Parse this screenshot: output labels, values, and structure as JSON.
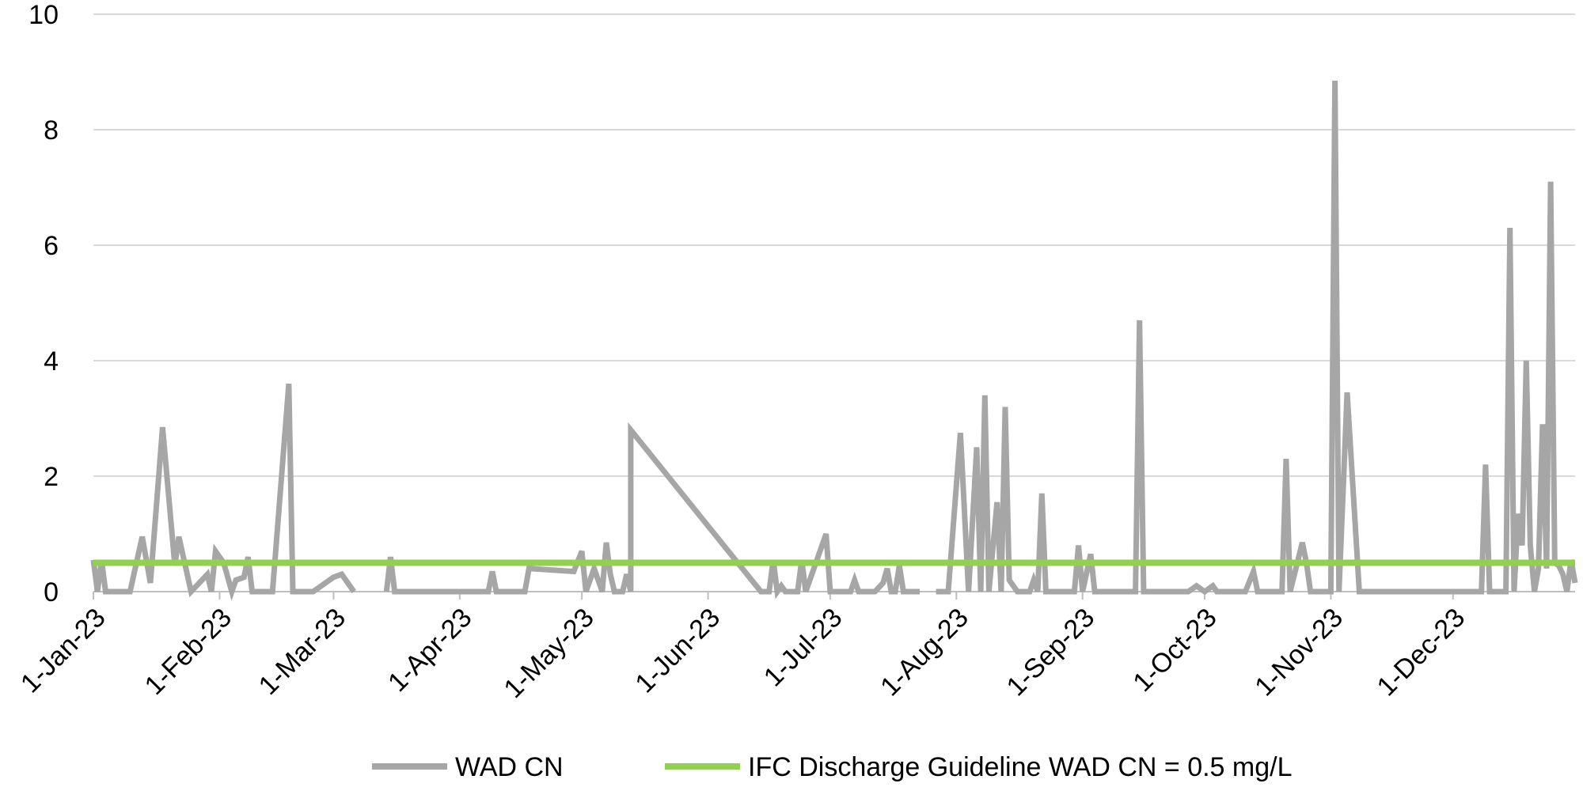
{
  "chart_data": {
    "type": "line",
    "title": "",
    "xlabel": "",
    "ylabel": "",
    "ylim": [
      0,
      10
    ],
    "yticks": [
      "0",
      "2",
      "4",
      "6",
      "8",
      "10"
    ],
    "xlim": [
      "2023-01-01",
      "2023-12-31"
    ],
    "xticks": [
      {
        "date": "2023-01-01",
        "label": "1-Jan-23"
      },
      {
        "date": "2023-02-01",
        "label": "1-Feb-23"
      },
      {
        "date": "2023-03-01",
        "label": "1-Mar-23"
      },
      {
        "date": "2023-04-01",
        "label": "1-Apr-23"
      },
      {
        "date": "2023-05-01",
        "label": "1-May-23"
      },
      {
        "date": "2023-06-01",
        "label": "1-Jun-23"
      },
      {
        "date": "2023-07-01",
        "label": "1-Jul-23"
      },
      {
        "date": "2023-08-01",
        "label": "1-Aug-23"
      },
      {
        "date": "2023-09-01",
        "label": "1-Sep-23"
      },
      {
        "date": "2023-10-01",
        "label": "1-Oct-23"
      },
      {
        "date": "2023-11-01",
        "label": "1-Nov-23"
      },
      {
        "date": "2023-12-01",
        "label": "1-Dec-23"
      }
    ],
    "grid": "horizontal",
    "legend_position": "bottom",
    "series": [
      {
        "name": "WAD CN",
        "color": "#a6a6a6",
        "segments": [
          [
            [
              "2023-01-01",
              0.55
            ],
            [
              "2023-01-02",
              0.0
            ],
            [
              "2023-01-03",
              0.55
            ],
            [
              "2023-01-04",
              0.0
            ],
            [
              "2023-01-10",
              0.0
            ],
            [
              "2023-01-13",
              0.95
            ],
            [
              "2023-01-15",
              0.15
            ],
            [
              "2023-01-18",
              2.85
            ],
            [
              "2023-01-21",
              0.45
            ],
            [
              "2023-01-22",
              0.95
            ],
            [
              "2023-01-25",
              0.0
            ],
            [
              "2023-01-29",
              0.3
            ],
            [
              "2023-01-30",
              0.0
            ],
            [
              "2023-01-31",
              0.7
            ],
            [
              "2023-02-02",
              0.5
            ],
            [
              "2023-02-04",
              0.0
            ],
            [
              "2023-02-05",
              0.2
            ],
            [
              "2023-02-07",
              0.25
            ],
            [
              "2023-02-08",
              0.6
            ],
            [
              "2023-02-09",
              0.0
            ],
            [
              "2023-02-14",
              0.0
            ],
            [
              "2023-02-18",
              3.6
            ],
            [
              "2023-02-19",
              0.0
            ],
            [
              "2023-02-24",
              0.0
            ],
            [
              "2023-03-01",
              0.25
            ],
            [
              "2023-03-03",
              0.3
            ],
            [
              "2023-03-04",
              0.2
            ],
            [
              "2023-03-06",
              0.0
            ]
          ],
          [
            [
              "2023-03-14",
              0.0
            ],
            [
              "2023-03-15",
              0.6
            ],
            [
              "2023-03-16",
              0.0
            ],
            [
              "2023-04-08",
              0.0
            ],
            [
              "2023-04-09",
              0.35
            ],
            [
              "2023-04-10",
              0.0
            ],
            [
              "2023-04-17",
              0.0
            ],
            [
              "2023-04-18",
              0.4
            ],
            [
              "2023-04-29",
              0.35
            ],
            [
              "2023-05-01",
              0.7
            ],
            [
              "2023-05-02",
              0.0
            ],
            [
              "2023-05-04",
              0.4
            ],
            [
              "2023-05-06",
              0.0
            ],
            [
              "2023-05-07",
              0.85
            ],
            [
              "2023-05-08",
              0.3
            ],
            [
              "2023-05-09",
              0.0
            ],
            [
              "2023-05-11",
              0.0
            ],
            [
              "2023-05-12",
              0.3
            ],
            [
              "2023-05-13",
              0.0
            ],
            [
              "2023-05-13",
              2.8
            ],
            [
              "2023-06-14",
              0.0
            ],
            [
              "2023-06-16",
              0.0
            ],
            [
              "2023-06-17",
              0.55
            ],
            [
              "2023-06-18",
              0.0
            ],
            [
              "2023-06-19",
              0.1
            ],
            [
              "2023-06-20",
              0.0
            ],
            [
              "2023-06-23",
              0.0
            ],
            [
              "2023-06-24",
              0.55
            ],
            [
              "2023-06-25",
              0.0
            ],
            [
              "2023-06-30",
              1.0
            ],
            [
              "2023-07-01",
              0.0
            ],
            [
              "2023-07-06",
              0.0
            ],
            [
              "2023-07-07",
              0.2
            ],
            [
              "2023-07-08",
              0.0
            ],
            [
              "2023-07-12",
              0.0
            ],
            [
              "2023-07-14",
              0.15
            ],
            [
              "2023-07-15",
              0.4
            ],
            [
              "2023-07-16",
              0.0
            ],
            [
              "2023-07-17",
              0.0
            ],
            [
              "2023-07-18",
              0.45
            ],
            [
              "2023-07-19",
              0.0
            ],
            [
              "2023-07-23",
              0.0
            ]
          ],
          [
            [
              "2023-07-27",
              0.0
            ],
            [
              "2023-07-30",
              0.0
            ],
            [
              "2023-08-02",
              2.75
            ],
            [
              "2023-08-04",
              0.0
            ],
            [
              "2023-08-06",
              2.5
            ],
            [
              "2023-08-07",
              0.0
            ],
            [
              "2023-08-08",
              3.4
            ],
            [
              "2023-08-09",
              0.0
            ],
            [
              "2023-08-11",
              1.55
            ],
            [
              "2023-08-12",
              0.0
            ],
            [
              "2023-08-13",
              3.2
            ],
            [
              "2023-08-14",
              0.2
            ],
            [
              "2023-08-15",
              0.1
            ],
            [
              "2023-08-16",
              0.0
            ],
            [
              "2023-08-19",
              0.0
            ],
            [
              "2023-08-20",
              0.2
            ],
            [
              "2023-08-21",
              0.0
            ],
            [
              "2023-08-22",
              1.7
            ],
            [
              "2023-08-23",
              0.0
            ],
            [
              "2023-08-30",
              0.0
            ],
            [
              "2023-08-31",
              0.8
            ],
            [
              "2023-09-01",
              0.0
            ],
            [
              "2023-09-03",
              0.65
            ],
            [
              "2023-09-04",
              0.0
            ],
            [
              "2023-09-14",
              0.0
            ],
            [
              "2023-09-15",
              4.7
            ],
            [
              "2023-09-16",
              0.0
            ],
            [
              "2023-09-27",
              0.0
            ],
            [
              "2023-09-29",
              0.1
            ],
            [
              "2023-10-01",
              0.0
            ],
            [
              "2023-10-03",
              0.1
            ],
            [
              "2023-10-04",
              0.0
            ],
            [
              "2023-10-11",
              0.0
            ],
            [
              "2023-10-13",
              0.35
            ],
            [
              "2023-10-14",
              0.0
            ],
            [
              "2023-10-20",
              0.0
            ],
            [
              "2023-10-21",
              2.3
            ],
            [
              "2023-10-22",
              0.0
            ],
            [
              "2023-10-25",
              0.85
            ],
            [
              "2023-10-26",
              0.5
            ],
            [
              "2023-10-27",
              0.0
            ],
            [
              "2023-11-01",
              0.0
            ],
            [
              "2023-11-02",
              8.85
            ],
            [
              "2023-11-03",
              0.0
            ],
            [
              "2023-11-05",
              3.45
            ],
            [
              "2023-11-08",
              0.0
            ],
            [
              "2023-12-08",
              0.0
            ],
            [
              "2023-12-09",
              2.2
            ],
            [
              "2023-12-10",
              0.0
            ],
            [
              "2023-12-14",
              0.0
            ],
            [
              "2023-12-15",
              6.3
            ],
            [
              "2023-12-16",
              0.0
            ],
            [
              "2023-12-17",
              1.35
            ],
            [
              "2023-12-18",
              0.8
            ],
            [
              "2023-12-19",
              4.0
            ],
            [
              "2023-12-20",
              0.8
            ],
            [
              "2023-12-21",
              0.0
            ],
            [
              "2023-12-22",
              0.4
            ],
            [
              "2023-12-23",
              2.9
            ],
            [
              "2023-12-24",
              0.4
            ],
            [
              "2023-12-25",
              7.1
            ],
            [
              "2023-12-26",
              0.5
            ],
            [
              "2023-12-27",
              0.45
            ],
            [
              "2023-12-28",
              0.3
            ],
            [
              "2023-12-29",
              0.0
            ],
            [
              "2023-12-30",
              0.55
            ],
            [
              "2023-12-31",
              0.15
            ]
          ]
        ]
      },
      {
        "name": "IFC Discharge Guideline WAD CN = 0.5 mg/L",
        "color": "#92d050",
        "segments": [
          [
            [
              "2023-01-01",
              0.5
            ],
            [
              "2023-12-31",
              0.5
            ]
          ]
        ]
      }
    ],
    "colors": {
      "grid": "#d9d9d9",
      "axis": "#bfbfbf"
    }
  }
}
